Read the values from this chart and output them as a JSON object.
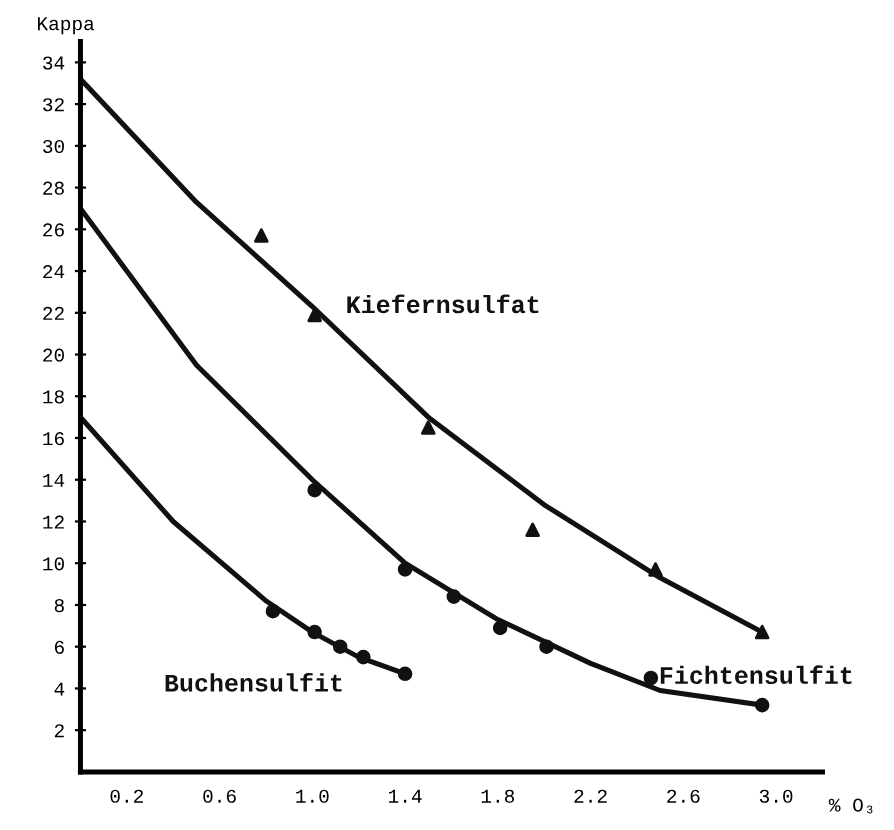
{
  "chart_data": {
    "type": "line",
    "ylabel": "Kappa",
    "xlabel": "% O₃",
    "xlim": [
      0,
      3.2
    ],
    "ylim": [
      0,
      35
    ],
    "xticks": [
      0.2,
      0.6,
      {
        "value": 1,
        "label": "1.0"
      },
      1.4,
      1.8,
      2.2,
      2.6,
      {
        "value": 3,
        "label": "3.0"
      }
    ],
    "yticks": [
      2,
      4,
      6,
      8,
      10,
      12,
      14,
      16,
      18,
      20,
      22,
      24,
      26,
      28,
      30,
      32,
      34
    ],
    "grid": false,
    "legend": false,
    "series": [
      {
        "name": "Kiefernsulfat",
        "color": "#111111",
        "marker": "none",
        "x": [
          0,
          0.5,
          1.0,
          1.5,
          2.0,
          2.5,
          2.94
        ],
        "values": [
          33.2,
          27.3,
          22.3,
          17.0,
          12.8,
          9.3,
          6.7
        ]
      },
      {
        "name": "Fichtensulfit",
        "color": "#111111",
        "marker": "none",
        "x": [
          0,
          0.5,
          1.0,
          1.4,
          1.8,
          2.2,
          2.5,
          2.94
        ],
        "values": [
          27,
          19.5,
          14.0,
          10.0,
          7.3,
          5.2,
          3.9,
          3.2
        ]
      },
      {
        "name": "Buchensulfit",
        "color": "#111111",
        "marker": "none",
        "x": [
          0,
          0.4,
          0.8,
          1.0,
          1.2,
          1.4
        ],
        "values": [
          17,
          12.0,
          8.2,
          6.7,
          5.5,
          4.7
        ]
      },
      {
        "type": "scatter",
        "color": "#111111",
        "marker": "triangle",
        "x": [
          0.78,
          1.01,
          1.5,
          1.95,
          2.48,
          2.94
        ],
        "values": [
          25.7,
          21.9,
          16.5,
          11.6,
          9.7,
          6.7
        ]
      },
      {
        "type": "scatter",
        "color": "#111111",
        "marker": "circle",
        "x": [
          1.01,
          1.4,
          1.61,
          1.81,
          2.01,
          2.46,
          2.94
        ],
        "values": [
          13.5,
          9.7,
          8.4,
          6.9,
          6.0,
          4.5,
          3.2
        ]
      },
      {
        "type": "scatter",
        "color": "#111111",
        "marker": "circle",
        "x": [
          0.83,
          1.01,
          1.12,
          1.22,
          1.4
        ],
        "values": [
          7.7,
          6.7,
          6.0,
          5.5,
          4.7
        ]
      }
    ]
  }
}
